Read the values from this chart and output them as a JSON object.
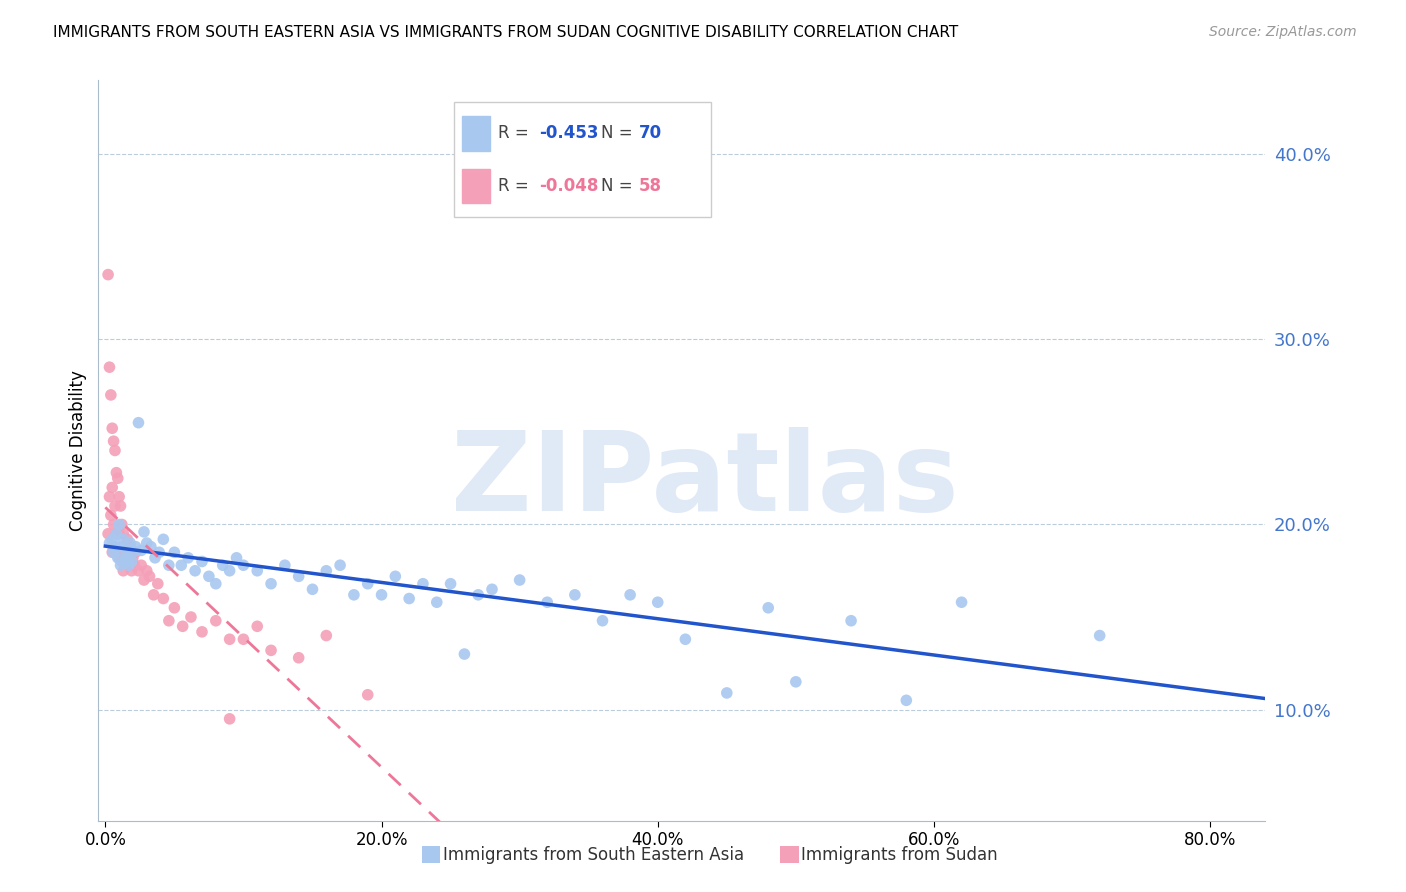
{
  "title": "IMMIGRANTS FROM SOUTH EASTERN ASIA VS IMMIGRANTS FROM SUDAN COGNITIVE DISABILITY CORRELATION CHART",
  "source": "Source: ZipAtlas.com",
  "xlabel_vals": [
    0.0,
    0.2,
    0.4,
    0.6,
    0.8
  ],
  "ylabel_label": "Cognitive Disability",
  "ylabel_vals": [
    0.1,
    0.2,
    0.3,
    0.4
  ],
  "ylim": [
    0.04,
    0.44
  ],
  "xlim": [
    -0.005,
    0.84
  ],
  "series1_color": "#A8C8F0",
  "series2_color": "#F4A0B8",
  "trendline1_color": "#2255CC",
  "trendline2_color": "#EE7799",
  "R1": -0.453,
  "N1": 70,
  "R2": -0.048,
  "N2": 58,
  "watermark": "ZIPatlas",
  "watermark_color": "#C8D8F0",
  "legend_label1": "Immigrants from South Eastern Asia",
  "legend_label2": "Immigrants from Sudan",
  "series1_x": [
    0.003,
    0.005,
    0.006,
    0.007,
    0.008,
    0.009,
    0.01,
    0.011,
    0.012,
    0.013,
    0.014,
    0.015,
    0.016,
    0.017,
    0.018,
    0.019,
    0.02,
    0.022,
    0.024,
    0.026,
    0.028,
    0.03,
    0.033,
    0.036,
    0.039,
    0.042,
    0.046,
    0.05,
    0.055,
    0.06,
    0.065,
    0.07,
    0.075,
    0.08,
    0.085,
    0.09,
    0.095,
    0.1,
    0.11,
    0.12,
    0.13,
    0.14,
    0.15,
    0.16,
    0.17,
    0.18,
    0.19,
    0.2,
    0.21,
    0.22,
    0.23,
    0.24,
    0.25,
    0.26,
    0.27,
    0.28,
    0.3,
    0.32,
    0.34,
    0.36,
    0.38,
    0.4,
    0.42,
    0.45,
    0.48,
    0.5,
    0.54,
    0.58,
    0.62,
    0.72
  ],
  "series1_y": [
    0.19,
    0.192,
    0.185,
    0.188,
    0.195,
    0.182,
    0.2,
    0.178,
    0.188,
    0.192,
    0.18,
    0.186,
    0.182,
    0.178,
    0.19,
    0.18,
    0.185,
    0.188,
    0.255,
    0.186,
    0.196,
    0.19,
    0.188,
    0.182,
    0.185,
    0.192,
    0.178,
    0.185,
    0.178,
    0.182,
    0.175,
    0.18,
    0.172,
    0.168,
    0.178,
    0.175,
    0.182,
    0.178,
    0.175,
    0.168,
    0.178,
    0.172,
    0.165,
    0.175,
    0.178,
    0.162,
    0.168,
    0.162,
    0.172,
    0.16,
    0.168,
    0.158,
    0.168,
    0.13,
    0.162,
    0.165,
    0.17,
    0.158,
    0.162,
    0.148,
    0.162,
    0.158,
    0.138,
    0.109,
    0.155,
    0.115,
    0.148,
    0.105,
    0.158,
    0.14
  ],
  "series2_x": [
    0.002,
    0.002,
    0.003,
    0.003,
    0.004,
    0.004,
    0.005,
    0.005,
    0.005,
    0.006,
    0.006,
    0.007,
    0.007,
    0.007,
    0.008,
    0.008,
    0.009,
    0.009,
    0.01,
    0.01,
    0.01,
    0.011,
    0.011,
    0.012,
    0.012,
    0.013,
    0.013,
    0.014,
    0.015,
    0.016,
    0.017,
    0.018,
    0.019,
    0.02,
    0.021,
    0.022,
    0.024,
    0.026,
    0.028,
    0.03,
    0.032,
    0.035,
    0.038,
    0.042,
    0.046,
    0.05,
    0.056,
    0.062,
    0.07,
    0.08,
    0.09,
    0.1,
    0.11,
    0.12,
    0.14,
    0.16,
    0.19,
    0.09
  ],
  "series2_y": [
    0.335,
    0.195,
    0.285,
    0.215,
    0.27,
    0.205,
    0.252,
    0.22,
    0.185,
    0.245,
    0.2,
    0.24,
    0.21,
    0.188,
    0.228,
    0.195,
    0.225,
    0.195,
    0.215,
    0.195,
    0.182,
    0.21,
    0.185,
    0.2,
    0.18,
    0.195,
    0.175,
    0.185,
    0.185,
    0.192,
    0.178,
    0.188,
    0.175,
    0.182,
    0.178,
    0.185,
    0.175,
    0.178,
    0.17,
    0.175,
    0.172,
    0.162,
    0.168,
    0.16,
    0.148,
    0.155,
    0.145,
    0.15,
    0.142,
    0.148,
    0.138,
    0.138,
    0.145,
    0.132,
    0.128,
    0.14,
    0.108,
    0.095
  ]
}
